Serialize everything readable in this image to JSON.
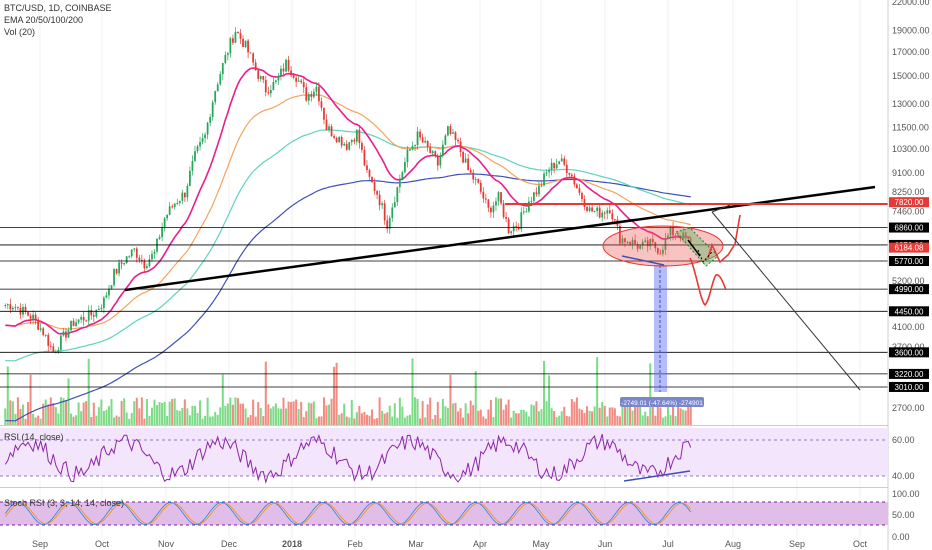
{
  "header": {
    "symbol": "BTC/USD, 1D, COINBASE",
    "ema": "EMA 20/50/100/200",
    "vol": "Vol (20)"
  },
  "rsi_label": "RSI (14, close)",
  "stoch_label": "Stoch RSI (3, 3, 14, 14, close)",
  "measure_label": "-2749.01 (-47.64%) -274901",
  "colors": {
    "trendline": "#000000",
    "resistance": "#e53935",
    "ema20": "#e91e8c",
    "ema50": "#f4a460",
    "ema100": "#5fd3bc",
    "ema200": "#3f51b5",
    "rsi_bg": "#f3e5fb",
    "stoch_bg": "#e1bee7",
    "measure": "#5c6bf5",
    "bull": "#26a65b",
    "bear": "#e53935"
  },
  "chart_data": {
    "type": "candlestick",
    "price_axis": {
      "ticks": [
        22000,
        19000,
        17000,
        15000,
        13000,
        11500,
        10300,
        9100,
        8250,
        7460,
        6860,
        6270,
        5770,
        5200,
        4990,
        4450,
        4100,
        3700,
        3600,
        3220,
        3010,
        2700
      ],
      "tick_labels": [
        "22000.00",
        "19000.00",
        "17000.00",
        "15000.00",
        "13000.00",
        "11500.00",
        "10300.00",
        "9100.00",
        "8250.00",
        "7460.00",
        "6860.00",
        "6270.00",
        "5770.00",
        "5200.00",
        "4990.00",
        "4450.00",
        "4100.00",
        "3700.00",
        "3600.00",
        "3220.00",
        "3010.00",
        "2700.00"
      ],
      "scale": "log"
    },
    "time_axis": [
      "Sep",
      "Oct",
      "Nov",
      "Dec",
      "2018",
      "Feb",
      "Mar",
      "Apr",
      "May",
      "Jun",
      "Jul",
      "Aug",
      "Sep",
      "Oct"
    ],
    "horizontal_levels": [
      7820,
      6860,
      6270,
      5770,
      4990,
      4450,
      3600,
      3220,
      3010
    ],
    "highlighted_levels": [
      {
        "value": 7820,
        "label": "7820.00",
        "color": "#e53935"
      },
      {
        "value": 6860,
        "label": "6860.00",
        "color": "#000000"
      },
      {
        "value": 6270,
        "label": "6270.00",
        "color": "#000000"
      },
      {
        "value": 6184,
        "label": "6184.08",
        "color": "#e53935"
      },
      {
        "value": 5770,
        "label": "5770.00",
        "color": "#000000"
      },
      {
        "value": 4990,
        "label": "4990.00",
        "color": "#000000"
      },
      {
        "value": 4450,
        "label": "4450.00",
        "color": "#000000"
      },
      {
        "value": 3600,
        "label": "3600.00",
        "color": "#000000"
      },
      {
        "value": 3220,
        "label": "3220.00",
        "color": "#000000"
      },
      {
        "value": 3010,
        "label": "3010.00",
        "color": "#000000"
      }
    ],
    "close_series": [
      4600,
      4450,
      4300,
      4000,
      3600,
      3900,
      4200,
      4300,
      4400,
      4700,
      5400,
      5800,
      6100,
      5700,
      6000,
      7200,
      7800,
      8200,
      9900,
      11000,
      14000,
      16500,
      19000,
      17500,
      15500,
      14000,
      14500,
      16000,
      15000,
      13500,
      14200,
      11500,
      11000,
      10500,
      11200,
      9000,
      8200,
      7000,
      8400,
      10000,
      11000,
      10300,
      9500,
      11300,
      10500,
      9200,
      8500,
      7500,
      8000,
      6800,
      7000,
      7900,
      8400,
      9300,
      9700,
      9200,
      8200,
      7500,
      7400,
      7600,
      6500,
      6400,
      6200,
      6300,
      6100,
      6700,
      6600,
      6300
    ],
    "rsi": {
      "range": [
        30,
        80
      ],
      "ticks": [
        60,
        40
      ]
    },
    "rsi_tick_labels": [
      "60.00",
      "40.00"
    ],
    "stoch": {
      "range": [
        0,
        100
      ],
      "ticks": [
        100,
        50,
        0
      ]
    },
    "stoch_tick_labels": [
      "100.00",
      "50.00",
      "0.00"
    ]
  }
}
